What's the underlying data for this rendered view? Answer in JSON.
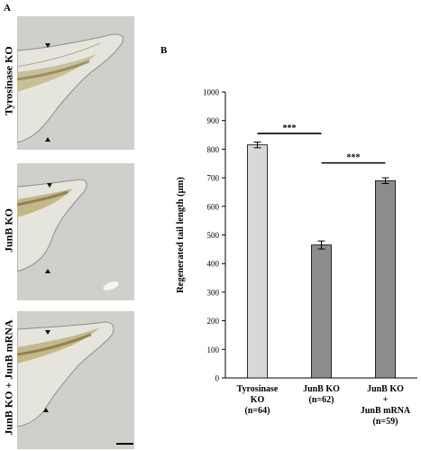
{
  "figure": {
    "panel_a_label": "A",
    "panel_b_label": "B",
    "row_labels": [
      "Tyrosinase KO",
      "JunB KO",
      "JunB KO + JunB mRNA"
    ],
    "colors": {
      "light_bar": "#d8d8d8",
      "dark_bar": "#8c8c8c",
      "background_micro": "#cfcfcb"
    }
  },
  "chart_data": {
    "type": "bar",
    "ylabel": "Regenerated tail length (µm)",
    "ylim": [
      0,
      1000
    ],
    "yticks": [
      0,
      100,
      200,
      300,
      400,
      500,
      600,
      700,
      800,
      900,
      1000
    ],
    "categories": [
      [
        "Tyrosinase",
        "KO",
        "(n=64)"
      ],
      [
        "JunB KO",
        "(n=62)"
      ],
      [
        "JunB KO",
        "+",
        "JunB mRNA",
        "(n=59)"
      ]
    ],
    "values": [
      815,
      465,
      690
    ],
    "errors": [
      10,
      14,
      10
    ],
    "bar_colors": [
      "#d8d8d8",
      "#8c8c8c",
      "#8c8c8c"
    ],
    "significance": [
      {
        "from": 0,
        "to": 1,
        "label": "***",
        "y": 855
      },
      {
        "from": 1,
        "to": 2,
        "label": "***",
        "y": 752
      }
    ]
  }
}
